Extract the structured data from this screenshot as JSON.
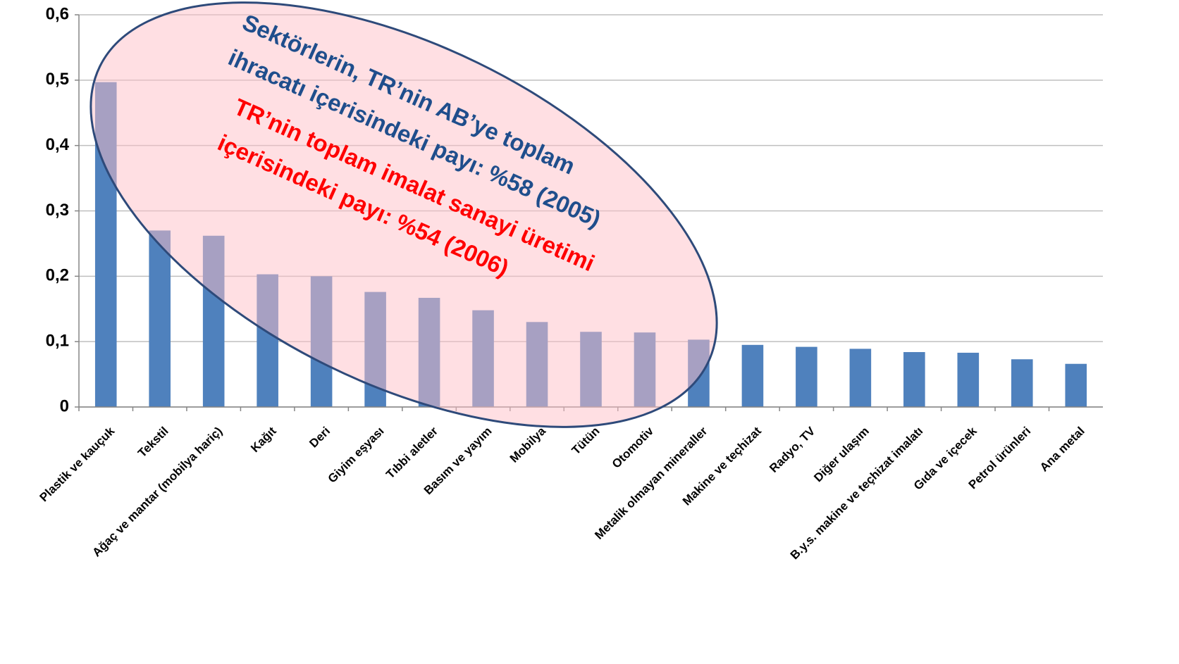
{
  "chart_data": {
    "type": "bar",
    "categories": [
      "Plastik ve kauçuk",
      "Tekstil",
      "Ağaç ve mantar (mobilya hariç)",
      "Kağıt",
      "Deri",
      "Giyim eşyası",
      "Tıbbi aletler",
      "Basım ve yayım",
      "Mobilya",
      "Tütün",
      "Otomotiv",
      "Metalik olmayan mineraller",
      "Makine ve teçhizat",
      "Radyo, TV",
      "Diğer ulaşım",
      "B.y.s. makine ve teçhizat imalatı",
      "Gıda ve içecek",
      "Petrol ürünleri",
      "Ana metal"
    ],
    "values": [
      0.497,
      0.27,
      0.262,
      0.203,
      0.2,
      0.176,
      0.167,
      0.148,
      0.13,
      0.115,
      0.114,
      0.103,
      0.095,
      0.092,
      0.089,
      0.084,
      0.083,
      0.073,
      0.066
    ],
    "color": "#4f81bd",
    "ylim": [
      0,
      0.6
    ],
    "yticks": [
      0,
      {
        "value": 0.1,
        "label": "0,1"
      },
      {
        "value": 0.2,
        "label": "0,2"
      },
      {
        "value": 0.3,
        "label": "0,3"
      },
      {
        "value": 0.4,
        "label": "0,4"
      },
      {
        "value": 0.5,
        "label": "0,5"
      },
      {
        "value": 0.6,
        "label": "0,6"
      }
    ],
    "grid": true,
    "annotations": [
      {
        "text": "Sektörlerin, TR’nin AB’ye toplam",
        "color": "#1f4e8c"
      },
      {
        "text": "ihracatı içerisindeki payı: %58 (2005)",
        "color": "#1f4e8c"
      },
      {
        "text": "TR’nin toplam imalat sanayi üretimi",
        "color": "#ff0000"
      },
      {
        "text": "içerisindeki payı: %54 (2006)",
        "color": "#ff0000"
      }
    ]
  }
}
